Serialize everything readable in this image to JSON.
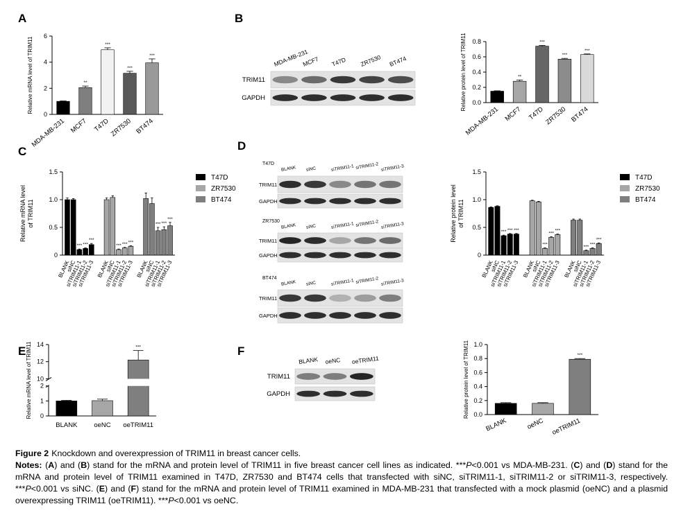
{
  "panels": [
    "A",
    "B",
    "C",
    "D",
    "E",
    "F"
  ],
  "chart_data": [
    {
      "type": "bar",
      "ylabel": "Relative mRNA level of TRIM11",
      "categories": [
        "MDA-MB-231",
        "MCF7",
        "T47D",
        "ZR7530",
        "BT474"
      ],
      "values": [
        1,
        2.05,
        4.95,
        3.15,
        3.95
      ],
      "errors": [
        0.03,
        0.12,
        0.15,
        0.15,
        0.3
      ],
      "annotations": [
        null,
        "**",
        "***",
        "***",
        "***"
      ],
      "colors": [
        "#000000",
        "#7f7f7f",
        "#f2f2f2",
        "#595959",
        "#999999"
      ],
      "ylim": [
        0,
        6
      ],
      "yticks": [
        0,
        2,
        4,
        6
      ]
    },
    {
      "type": "bar",
      "ylabel": "Relative protein level of TRIM11",
      "categories": [
        "MDA-MB-231",
        "MCF7",
        "T47D",
        "ZR7530",
        "BT474"
      ],
      "values": [
        0.15,
        0.28,
        0.74,
        0.57,
        0.63
      ],
      "errors": [
        0.005,
        0.015,
        0.01,
        0.01,
        0.008
      ],
      "annotations": [
        null,
        "**",
        "***",
        "***",
        "***"
      ],
      "colors": [
        "#000000",
        "#a6a6a6",
        "#666666",
        "#8c8c8c",
        "#d9d9d9"
      ],
      "ylim": [
        0,
        0.8
      ],
      "yticks": [
        {
          "value": 0,
          "label": "0.0"
        },
        0.2,
        0.4,
        0.6,
        0.8
      ]
    },
    {
      "type": "bar",
      "ylabel": [
        "Relative mRNA level",
        "of TRIM11"
      ],
      "categories": [
        "BLANK",
        "siNC",
        "siTRIM11-1",
        "siTRIM11-2",
        "siTRIM11-3"
      ],
      "series": [
        {
          "name": "T47D",
          "color": "#000000",
          "values": [
            1.0,
            1.0,
            0.1,
            0.12,
            0.19
          ],
          "errors": [
            0.03,
            0.02,
            0.01,
            0.01,
            0.02
          ],
          "annotations": [
            null,
            null,
            "***",
            "***",
            "***"
          ]
        },
        {
          "name": "ZR7530",
          "color": "#a6a6a6",
          "values": [
            1.0,
            1.04,
            0.1,
            0.13,
            0.16
          ],
          "errors": [
            0.03,
            0.03,
            0.01,
            0.01,
            0.01
          ],
          "annotations": [
            null,
            null,
            "***",
            "***",
            "***"
          ]
        },
        {
          "name": "BT474",
          "color": "#7f7f7f",
          "values": [
            1.02,
            0.93,
            0.44,
            0.46,
            0.53
          ],
          "errors": [
            0.1,
            0.1,
            0.06,
            0.05,
            0.06
          ],
          "annotations": [
            null,
            null,
            "***",
            "***",
            "***"
          ]
        }
      ],
      "ylim": [
        0,
        1.5
      ],
      "yticks": [
        0,
        0.5,
        {
          "value": 1,
          "label": "1.0"
        },
        1.5
      ],
      "legend": "right"
    },
    {
      "type": "bar",
      "ylabel": [
        "Relative protein level",
        "of TRIM11"
      ],
      "categories": [
        "BLANK",
        "siNC",
        "siTRIM11-1",
        "siTRIM11-2",
        "siTRIM11-3"
      ],
      "series": [
        {
          "name": "T47D",
          "color": "#000000",
          "values": [
            0.86,
            0.88,
            0.35,
            0.38,
            0.38
          ],
          "errors": [
            0.01,
            0.01,
            0.01,
            0.01,
            0.01
          ],
          "annotations": [
            null,
            null,
            "***",
            "***",
            "***"
          ]
        },
        {
          "name": "ZR7530",
          "color": "#a6a6a6",
          "values": [
            0.98,
            0.96,
            0.12,
            0.32,
            0.37
          ],
          "errors": [
            0.01,
            0.01,
            0.01,
            0.01,
            0.01
          ],
          "annotations": [
            null,
            null,
            "***",
            "***",
            "***"
          ]
        },
        {
          "name": "BT474",
          "color": "#7f7f7f",
          "values": [
            0.63,
            0.63,
            0.08,
            0.12,
            0.21
          ],
          "errors": [
            0.02,
            0.02,
            0.01,
            0.01,
            0.01
          ],
          "annotations": [
            null,
            null,
            "***",
            "***",
            "***"
          ]
        }
      ],
      "ylim": [
        0,
        1.5
      ],
      "yticks": [
        0,
        0.5,
        {
          "value": 1,
          "label": "1.0"
        },
        1.5
      ],
      "legend": "right"
    },
    {
      "type": "bar",
      "ylabel": "Relative mRNA level of TRIM11",
      "categories": [
        "BLANK",
        "oeNC",
        "oeTRIM11"
      ],
      "values": [
        1,
        1.02,
        12.2
      ],
      "errors": [
        0.04,
        0.1,
        1.1
      ],
      "annotations": [
        null,
        null,
        "***"
      ],
      "colors": [
        "#000000",
        "#a6a6a6",
        "#7f7f7f"
      ],
      "ylim": [
        0,
        14
      ],
      "ybreak": [
        2,
        10
      ],
      "yticks": [
        0,
        1,
        2,
        10,
        12,
        14
      ]
    },
    {
      "type": "bar",
      "ylabel": "Relative protein level of TRIM11",
      "categories": [
        "BLANK",
        "oeNC",
        "oeTRIM11"
      ],
      "values": [
        0.16,
        0.16,
        0.79
      ],
      "errors": [
        0.01,
        0.01,
        0.01
      ],
      "annotations": [
        null,
        null,
        "***"
      ],
      "colors": [
        "#000000",
        "#a6a6a6",
        "#7f7f7f"
      ],
      "ylim": [
        0,
        1
      ],
      "yticks": [
        {
          "value": 0,
          "label": "0.0"
        },
        0.2,
        0.4,
        0.6,
        0.8,
        {
          "value": 1,
          "label": "1.0"
        }
      ]
    }
  ],
  "blots": [
    {
      "lanes": [
        "MDA-MB-231",
        "MCF7",
        "T47D",
        "ZR7530",
        "BT474"
      ],
      "rows": [
        "TRIM11",
        "GAPDH"
      ]
    },
    {
      "cell_line": "T47D",
      "lanes": [
        "BLANK",
        "siNC",
        "siTRIM11-1",
        "siTRIM11-2",
        "siTRIM11-3"
      ],
      "rows": [
        "TRIM11",
        "GAPDH"
      ]
    },
    {
      "cell_line": "ZR7530",
      "lanes": [
        "BLANK",
        "siNC",
        "siTRIM11-1",
        "siTRIM11-2",
        "siTRIM11-3"
      ],
      "rows": [
        "TRIM11",
        "GAPDH"
      ]
    },
    {
      "cell_line": "BT474",
      "lanes": [
        "BLANK",
        "siNC",
        "siTRIM11-1",
        "siTRIM11-2",
        "siTRIM11-3"
      ],
      "rows": [
        "TRIM11",
        "GAPDH"
      ]
    },
    {
      "lanes": [
        "BLANK",
        "oeNC",
        "oeTRIM11"
      ],
      "rows": [
        "TRIM11",
        "GAPDH"
      ]
    }
  ],
  "caption": {
    "label": "Figure 2",
    "title": "Knockdown and overexpression of TRIM11 in breast cancer cells.",
    "notes": [
      {
        "text": "Notes: ",
        "style": "bold"
      },
      {
        "text": "("
      },
      {
        "text": "A",
        "style": "bold"
      },
      {
        "text": ") and ("
      },
      {
        "text": "B",
        "style": "bold"
      },
      {
        "text": ") stand for the mRNA and protein level of TRIM11 in five breast cancer cell lines as indicated. ***"
      },
      {
        "text": "P",
        "style": "italic"
      },
      {
        "text": "<0.001 vs MDA-MB-231. ("
      },
      {
        "text": "C",
        "style": "bold"
      },
      {
        "text": ") and ("
      },
      {
        "text": "D",
        "style": "bold"
      },
      {
        "text": ") stand for the mRNA and protein level of TRIM11 examined in T47D, ZR7530 and BT474 cells that transfected with siNC, siTRIM11-1, siTRIM11-2 or siTRIM11-3, respectively. ***"
      },
      {
        "text": "P",
        "style": "italic"
      },
      {
        "text": "<0.001 vs siNC. ("
      },
      {
        "text": "E",
        "style": "bold"
      },
      {
        "text": ") and ("
      },
      {
        "text": "F",
        "style": "bold"
      },
      {
        "text": ") stand for the mRNA and protein level of TRIM11 examined in MDA-MB-231 that transfected with a mock plasmid (oeNC) and a plasmid overexpressing TRIM11 (oeTRIM11). ***"
      },
      {
        "text": "P",
        "style": "italic"
      },
      {
        "text": "<0.001 vs oeNC."
      }
    ]
  }
}
